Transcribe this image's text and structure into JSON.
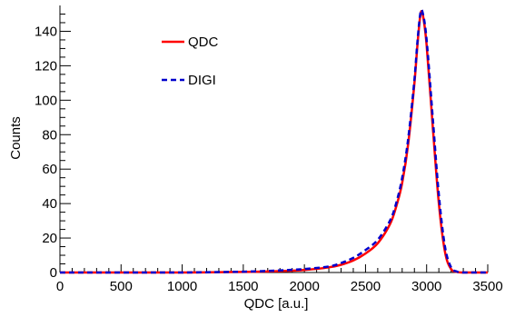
{
  "chart_data": {
    "type": "line",
    "title": "",
    "xlabel": "QDC [a.u.]",
    "ylabel": "Counts",
    "xlim": [
      0,
      3500
    ],
    "ylim": [
      0,
      155
    ],
    "xticks": [
      0,
      500,
      1000,
      1500,
      2000,
      2500,
      3000,
      3500
    ],
    "yticks": [
      0,
      20,
      40,
      60,
      80,
      100,
      120,
      140
    ],
    "grid": false,
    "legend_position": "top-left",
    "series": [
      {
        "name": "QDC",
        "color": "#ff0000",
        "style": "solid",
        "x": [
          0,
          500,
          1000,
          1500,
          1800,
          2000,
          2200,
          2300,
          2400,
          2500,
          2600,
          2700,
          2750,
          2800,
          2850,
          2900,
          2925,
          2950,
          2970,
          3000,
          3050,
          3100,
          3150,
          3200,
          3250,
          3300,
          3500
        ],
        "y": [
          0,
          0,
          0,
          0.3,
          0.8,
          1.5,
          3,
          4.5,
          7,
          11,
          17,
          28,
          38,
          52,
          75,
          110,
          132,
          150,
          149,
          132,
          85,
          40,
          12,
          2,
          0.3,
          0,
          0
        ]
      },
      {
        "name": "DIGI",
        "color": "#0000cc",
        "style": "dashed",
        "x": [
          0,
          500,
          1000,
          1500,
          1800,
          2000,
          2200,
          2300,
          2400,
          2500,
          2600,
          2700,
          2750,
          2800,
          2850,
          2900,
          2925,
          2950,
          2970,
          3000,
          3050,
          3100,
          3150,
          3200,
          3250,
          3300,
          3500
        ],
        "y": [
          0,
          0,
          0,
          0.5,
          1.2,
          2,
          3.5,
          5.5,
          8.5,
          13,
          19,
          30,
          40,
          55,
          78,
          112,
          134,
          151,
          150,
          135,
          90,
          45,
          15,
          3,
          0.5,
          0,
          0
        ]
      }
    ]
  }
}
